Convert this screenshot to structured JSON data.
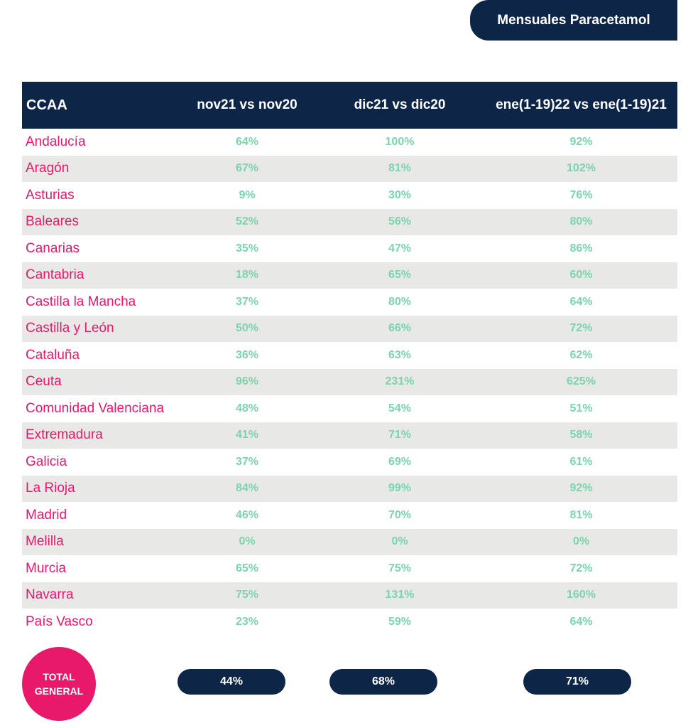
{
  "header": {
    "title": "Mensuales Paracetamol"
  },
  "table": {
    "columns": [
      "CCAA",
      "nov21 vs nov20",
      "dic21 vs dic20",
      "ene(1-19)22 vs ene(1-19)21"
    ],
    "rows": [
      [
        "Andalucía",
        "64%",
        "100%",
        "92%"
      ],
      [
        "Aragón",
        "67%",
        "81%",
        "102%"
      ],
      [
        "Asturias",
        "9%",
        "30%",
        "76%"
      ],
      [
        "Baleares",
        "52%",
        "56%",
        "80%"
      ],
      [
        "Canarias",
        "35%",
        "47%",
        "86%"
      ],
      [
        "Cantabria",
        "18%",
        "65%",
        "60%"
      ],
      [
        "Castilla la Mancha",
        "37%",
        "80%",
        "64%"
      ],
      [
        "Castilla y León",
        "50%",
        "66%",
        "72%"
      ],
      [
        "Cataluña",
        "36%",
        "63%",
        "62%"
      ],
      [
        "Ceuta",
        "96%",
        "231%",
        "625%"
      ],
      [
        "Comunidad Valenciana",
        "48%",
        "54%",
        "51%"
      ],
      [
        "Extremadura",
        "41%",
        "71%",
        "58%"
      ],
      [
        "Galicia",
        "37%",
        "69%",
        "61%"
      ],
      [
        "La Rioja",
        "84%",
        "99%",
        "92%"
      ],
      [
        "Madrid",
        "46%",
        "70%",
        "81%"
      ],
      [
        "Melilla",
        "0%",
        "0%",
        "0%"
      ],
      [
        "Murcia",
        "65%",
        "75%",
        "72%"
      ],
      [
        "Navarra",
        "75%",
        "131%",
        "160%"
      ],
      [
        "País Vasco",
        "23%",
        "59%",
        "64%"
      ]
    ]
  },
  "total": {
    "label_line1": "TOTAL",
    "label_line2": "GENERAL",
    "values": [
      "44%",
      "68%",
      "71%"
    ]
  },
  "colors": {
    "navy": "#0d2547",
    "pink": "#e8186a",
    "green": "#7cd3ae",
    "stripe": "#e8e9e6"
  }
}
